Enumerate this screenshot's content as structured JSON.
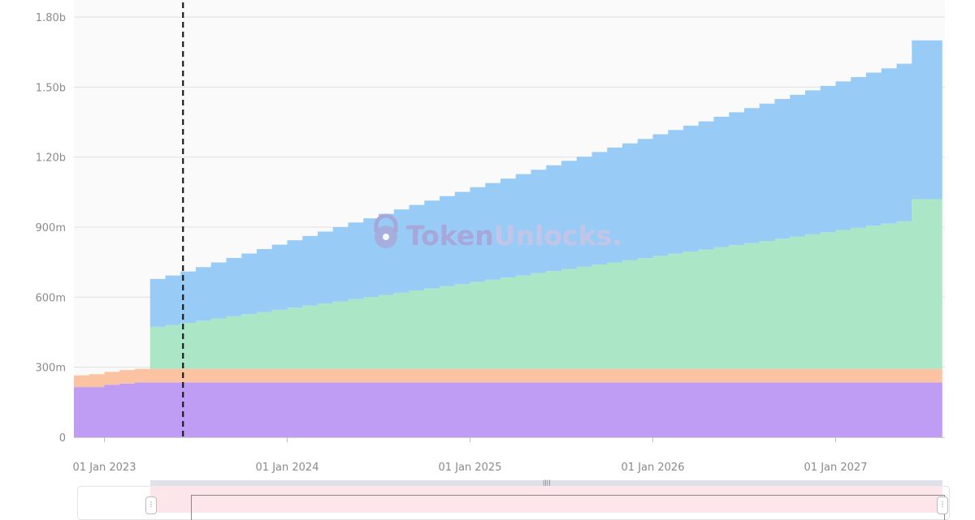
{
  "chart_data": {
    "type": "area",
    "title": "",
    "xlabel": "",
    "ylabel": "",
    "stacked": true,
    "step": true,
    "x_start": "2022-11",
    "x_end": "2027-08",
    "x_ticks": [
      "01 Jan 2023",
      "01 Jan 2024",
      "01 Jan 2025",
      "01 Jan 2026",
      "01 Jan 2027"
    ],
    "y_ticks": [
      "0",
      "300m",
      "600m",
      "900m",
      "1.20b",
      "1.50b",
      "1.80b"
    ],
    "ylim": [
      0,
      1800000000
    ],
    "today_marker": "2023-06",
    "grid": true,
    "legend": "none",
    "series": [
      {
        "color": "#bf9df5",
        "start": "2022-11",
        "values": [
          215000000,
          215000000,
          225000000,
          230000000,
          235000000,
          235000000,
          235000000,
          235000000,
          235000000,
          235000000,
          235000000,
          235000000,
          235000000,
          235000000,
          235000000,
          235000000,
          235000000,
          235000000,
          235000000,
          235000000,
          235000000,
          235000000,
          235000000,
          235000000,
          235000000,
          235000000,
          235000000,
          235000000,
          235000000,
          235000000,
          235000000,
          235000000,
          235000000,
          235000000,
          235000000,
          235000000,
          235000000,
          235000000,
          235000000,
          235000000,
          235000000,
          235000000,
          235000000,
          235000000,
          235000000,
          235000000,
          235000000,
          235000000,
          235000000,
          235000000,
          235000000,
          235000000,
          235000000,
          235000000,
          235000000,
          235000000,
          235000000
        ]
      },
      {
        "color": "#fcc3a3",
        "start": "2022-11",
        "values": [
          50000000,
          55000000,
          55000000,
          58000000,
          58000000,
          58000000,
          58000000,
          58000000,
          58000000,
          58000000,
          58000000,
          58000000,
          58000000,
          58000000,
          58000000,
          58000000,
          58000000,
          58000000,
          58000000,
          58000000,
          58000000,
          58000000,
          58000000,
          58000000,
          58000000,
          58000000,
          58000000,
          58000000,
          58000000,
          58000000,
          58000000,
          58000000,
          58000000,
          58000000,
          58000000,
          58000000,
          58000000,
          58000000,
          58000000,
          58000000,
          58000000,
          58000000,
          58000000,
          58000000,
          58000000,
          58000000,
          58000000,
          58000000,
          58000000,
          58000000,
          58000000,
          58000000,
          58000000,
          58000000,
          58000000,
          58000000,
          58000000
        ]
      },
      {
        "color": "#abe7c6",
        "start": "2023-04",
        "values": [
          180000000,
          188000000,
          197000000,
          206000000,
          216000000,
          225000000,
          234000000,
          243000000,
          253000000,
          262000000,
          271000000,
          280000000,
          289000000,
          299000000,
          308000000,
          317000000,
          326000000,
          336000000,
          345000000,
          354000000,
          363000000,
          373000000,
          382000000,
          391000000,
          400000000,
          410000000,
          419000000,
          428000000,
          437000000,
          447000000,
          456000000,
          465000000,
          474000000,
          484000000,
          493000000,
          502000000,
          511000000,
          521000000,
          530000000,
          539000000,
          548000000,
          558000000,
          567000000,
          576000000,
          585000000,
          595000000,
          604000000,
          613000000,
          622000000,
          632000000,
          727000000,
          727000000
        ]
      },
      {
        "color": "#98ccf6",
        "start": "2023-04",
        "values": [
          205000000,
          212000000,
          220000000,
          230000000,
          240000000,
          250000000,
          260000000,
          270000000,
          279000000,
          289000000,
          298000000,
          308000000,
          318000000,
          328000000,
          337000000,
          347000000,
          357000000,
          366000000,
          376000000,
          386000000,
          395000000,
          405000000,
          414000000,
          424000000,
          434000000,
          443000000,
          453000000,
          463000000,
          472000000,
          482000000,
          492000000,
          501000000,
          511000000,
          521000000,
          530000000,
          540000000,
          549000000,
          559000000,
          569000000,
          578000000,
          588000000,
          598000000,
          607000000,
          617000000,
          627000000,
          636000000,
          646000000,
          656000000,
          665000000,
          675000000,
          680000000,
          680000000
        ]
      }
    ]
  },
  "watermark": {
    "brand_a": "Token",
    "brand_b": "Unlocks.",
    "color_a": "#a9a4d6",
    "color_b": "#c8c5e6"
  },
  "colors": {
    "plot_bg": "#fafafa",
    "grid": "#e0e0e0",
    "today_line": "#1a1a1a"
  },
  "slider": {
    "grip_icon": "grip-dots-icon",
    "handle_icon": "drag-handle-icon"
  }
}
